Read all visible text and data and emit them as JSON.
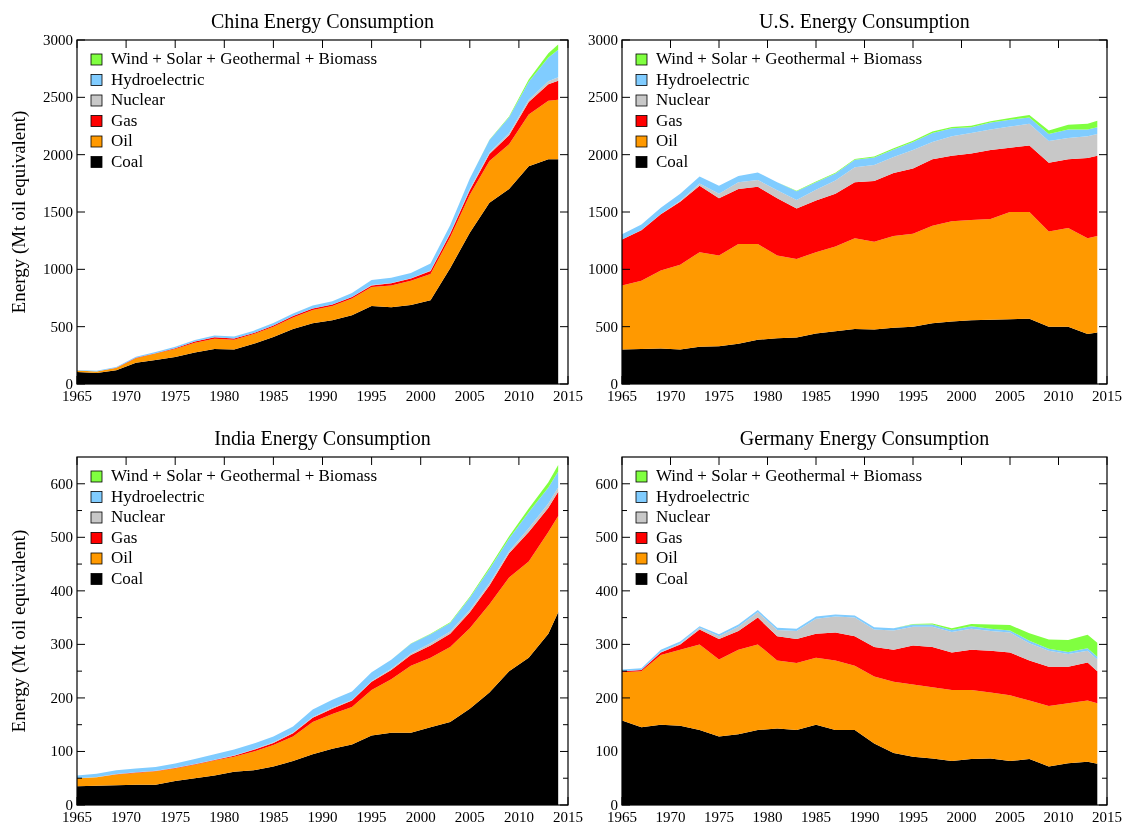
{
  "chart_data": [
    {
      "type": "area",
      "title": "China Energy Consumption",
      "ylabel": "Energy (Mt oil equivalent)",
      "stacked": true,
      "legend": "top left",
      "grid": false,
      "x": [
        1965,
        1967,
        1969,
        1971,
        1973,
        1975,
        1977,
        1979,
        1981,
        1983,
        1985,
        1987,
        1989,
        1991,
        1993,
        1995,
        1997,
        1999,
        2001,
        2003,
        2005,
        2007,
        2009,
        2011,
        2013,
        2014
      ],
      "xlim": [
        1965,
        2015
      ],
      "xticks": [
        1965,
        1970,
        1975,
        1980,
        1985,
        1990,
        1995,
        2000,
        2005,
        2010,
        2015
      ],
      "ylim": [
        0,
        3000
      ],
      "yticks": [
        0,
        500,
        1000,
        1500,
        2000,
        2500,
        3000
      ],
      "series": [
        {
          "name": "Coal",
          "color": "#000000",
          "values": [
            105,
            95,
            120,
            185,
            210,
            235,
            275,
            305,
            300,
            350,
            410,
            480,
            530,
            555,
            600,
            680,
            670,
            690,
            730,
            1010,
            1320,
            1580,
            1700,
            1900,
            1960,
            1960
          ]
        },
        {
          "name": "Oil",
          "color": "#ff9900",
          "values": [
            12,
            14,
            20,
            40,
            55,
            70,
            85,
            90,
            85,
            85,
            90,
            100,
            115,
            125,
            145,
            165,
            190,
            210,
            230,
            270,
            330,
            365,
            390,
            450,
            510,
            520
          ]
        },
        {
          "name": "Gas",
          "color": "#ff0000",
          "values": [
            1,
            1,
            2,
            3,
            4,
            7,
            10,
            12,
            11,
            10,
            11,
            12,
            13,
            13,
            14,
            15,
            18,
            20,
            25,
            30,
            40,
            60,
            80,
            110,
            145,
            165
          ]
        },
        {
          "name": "Nuclear",
          "color": "#c8c8c8",
          "values": [
            0,
            0,
            0,
            0,
            0,
            0,
            0,
            0,
            0,
            0,
            0,
            0,
            0,
            0,
            0,
            3,
            3,
            3,
            4,
            10,
            12,
            14,
            16,
            20,
            25,
            30
          ]
        },
        {
          "name": "Hydroelectric",
          "color": "#80ccff",
          "values": [
            5,
            5,
            7,
            9,
            10,
            12,
            13,
            15,
            18,
            20,
            21,
            22,
            27,
            28,
            34,
            43,
            45,
            46,
            62,
            64,
            90,
            110,
            140,
            155,
            208,
            240
          ]
        },
        {
          "name": "Wind + Solar + Geothermal + Biomass",
          "color": "#80ff40",
          "values": [
            0,
            0,
            0,
            0,
            0,
            0,
            0,
            0,
            0,
            0,
            0,
            0,
            0,
            0,
            0,
            0,
            0,
            0,
            0,
            0,
            1,
            2,
            6,
            20,
            36,
            45
          ]
        }
      ]
    },
    {
      "type": "area",
      "title": "U.S. Energy Consumption",
      "stacked": true,
      "legend": "top left",
      "grid": false,
      "x": [
        1965,
        1967,
        1969,
        1971,
        1973,
        1975,
        1977,
        1979,
        1981,
        1983,
        1985,
        1987,
        1989,
        1991,
        1993,
        1995,
        1997,
        1999,
        2001,
        2003,
        2005,
        2007,
        2009,
        2011,
        2013,
        2014
      ],
      "xlim": [
        1965,
        2015
      ],
      "xticks": [
        1965,
        1970,
        1975,
        1980,
        1985,
        1990,
        1995,
        2000,
        2005,
        2010,
        2015
      ],
      "ylim": [
        0,
        3000
      ],
      "yticks": [
        0,
        500,
        1000,
        1500,
        2000,
        2500,
        3000
      ],
      "series": [
        {
          "name": "Coal",
          "color": "#000000",
          "values": [
            300,
            305,
            310,
            300,
            325,
            330,
            350,
            385,
            400,
            405,
            440,
            460,
            480,
            475,
            490,
            500,
            530,
            545,
            555,
            560,
            565,
            570,
            500,
            500,
            435,
            450
          ]
        },
        {
          "name": "Oil",
          "color": "#ff9900",
          "values": [
            560,
            595,
            680,
            740,
            825,
            790,
            870,
            835,
            720,
            685,
            710,
            740,
            790,
            765,
            800,
            810,
            850,
            875,
            875,
            880,
            935,
            930,
            830,
            860,
            835,
            840
          ]
        },
        {
          "name": "Gas",
          "color": "#ff0000",
          "values": [
            400,
            440,
            490,
            550,
            580,
            500,
            480,
            500,
            500,
            440,
            450,
            460,
            490,
            530,
            550,
            570,
            580,
            570,
            580,
            600,
            560,
            580,
            600,
            600,
            700,
            700
          ]
        },
        {
          "name": "Nuclear",
          "color": "#c8c8c8",
          "values": [
            1,
            2,
            3,
            9,
            19,
            40,
            60,
            60,
            70,
            75,
            95,
            115,
            130,
            140,
            140,
            160,
            150,
            170,
            180,
            180,
            185,
            190,
            190,
            185,
            190,
            190
          ]
        },
        {
          "name": "Hydroelectric",
          "color": "#80ccff",
          "values": [
            45,
            50,
            55,
            60,
            60,
            70,
            55,
            65,
            70,
            75,
            65,
            60,
            65,
            65,
            65,
            70,
            80,
            70,
            50,
            60,
            60,
            55,
            60,
            75,
            60,
            60
          ]
        },
        {
          "name": "Wind + Solar + Geothermal + Biomass",
          "color": "#80ff40",
          "values": [
            0,
            0,
            0,
            0,
            0,
            0,
            0,
            0,
            0,
            5,
            6,
            8,
            8,
            10,
            10,
            12,
            12,
            12,
            12,
            12,
            15,
            20,
            30,
            40,
            50,
            55
          ]
        }
      ]
    },
    {
      "type": "area",
      "title": "India Energy Consumption",
      "ylabel": "Energy (Mt oil equivalent)",
      "stacked": true,
      "legend": "top left",
      "grid": false,
      "x": [
        1965,
        1967,
        1969,
        1971,
        1973,
        1975,
        1977,
        1979,
        1981,
        1983,
        1985,
        1987,
        1989,
        1991,
        1993,
        1995,
        1997,
        1999,
        2001,
        2003,
        2005,
        2007,
        2009,
        2011,
        2013,
        2014
      ],
      "xlim": [
        1965,
        2015
      ],
      "xticks": [
        1965,
        1970,
        1975,
        1980,
        1985,
        1990,
        1995,
        2000,
        2005,
        2010,
        2015
      ],
      "ylim": [
        0,
        650
      ],
      "yticks": [
        0,
        {
          "value": 50,
          "label": null
        },
        100,
        {
          "value": 150,
          "label": null
        },
        200,
        {
          "value": 250,
          "label": null
        },
        300,
        {
          "value": 350,
          "label": null
        },
        400,
        {
          "value": 450,
          "label": null
        },
        500,
        {
          "value": 550,
          "label": null
        },
        600
      ],
      "series": [
        {
          "name": "Coal",
          "color": "#000000",
          "values": [
            35,
            36,
            37,
            38,
            38,
            45,
            50,
            55,
            62,
            65,
            72,
            82,
            95,
            105,
            113,
            130,
            135,
            135,
            145,
            155,
            180,
            210,
            250,
            275,
            320,
            360
          ]
        },
        {
          "name": "Oil",
          "color": "#ff9900",
          "values": [
            15,
            16,
            20,
            22,
            25,
            23,
            25,
            28,
            28,
            35,
            40,
            46,
            60,
            65,
            70,
            85,
            100,
            125,
            130,
            140,
            150,
            165,
            175,
            180,
            190,
            180
          ]
        },
        {
          "name": "Gas",
          "color": "#ff0000",
          "values": [
            0,
            0,
            0.5,
            0.5,
            0.5,
            1,
            1,
            1,
            2,
            3,
            4,
            6,
            8,
            10,
            12,
            15,
            17,
            20,
            23,
            25,
            30,
            35,
            45,
            55,
            45,
            45
          ]
        },
        {
          "name": "Nuclear",
          "color": "#c8c8c8",
          "values": [
            0,
            0.3,
            0.5,
            0.5,
            0.5,
            0.6,
            0.7,
            0.7,
            0.7,
            0.8,
            1,
            1.5,
            1.2,
            1.5,
            1.2,
            1.8,
            2.5,
            3,
            4,
            4,
            4,
            4,
            4,
            7,
            8,
            8
          ]
        },
        {
          "name": "Hydroelectric",
          "color": "#80ccff",
          "values": [
            5,
            6,
            7,
            7,
            7,
            8,
            9,
            10,
            11,
            11,
            11,
            11,
            14,
            15,
            16,
            16,
            17,
            18,
            17,
            16,
            23,
            27,
            24,
            30,
            30,
            30
          ]
        },
        {
          "name": "Wind + Solar + Geothermal + Biomass",
          "color": "#80ff40",
          "values": [
            0,
            0,
            0,
            0,
            0,
            0,
            0,
            0,
            0,
            0,
            0,
            0,
            0,
            0,
            0,
            0,
            0,
            0.5,
            1,
            1.5,
            2,
            3,
            4,
            7,
            10,
            12
          ]
        }
      ]
    },
    {
      "type": "area",
      "title": "Germany Energy Consumption",
      "stacked": true,
      "legend": "top left",
      "grid": false,
      "x": [
        1965,
        1967,
        1969,
        1971,
        1973,
        1975,
        1977,
        1979,
        1981,
        1983,
        1985,
        1987,
        1989,
        1991,
        1993,
        1995,
        1997,
        1999,
        2001,
        2003,
        2005,
        2007,
        2009,
        2011,
        2013,
        2014
      ],
      "xlim": [
        1965,
        2015
      ],
      "xticks": [
        1965,
        1970,
        1975,
        1980,
        1985,
        1990,
        1995,
        2000,
        2005,
        2010,
        2015
      ],
      "ylim": [
        0,
        650
      ],
      "yticks": [
        0,
        {
          "value": 50,
          "label": null
        },
        100,
        {
          "value": 150,
          "label": null
        },
        200,
        {
          "value": 250,
          "label": null
        },
        300,
        {
          "value": 350,
          "label": null
        },
        400,
        {
          "value": 450,
          "label": null
        },
        500,
        {
          "value": 550,
          "label": null
        },
        600
      ],
      "series": [
        {
          "name": "Coal",
          "color": "#000000",
          "values": [
            158,
            145,
            150,
            148,
            140,
            128,
            132,
            140,
            143,
            140,
            150,
            140,
            140,
            115,
            97,
            90,
            87,
            82,
            86,
            87,
            82,
            86,
            72,
            78,
            81,
            77
          ]
        },
        {
          "name": "Oil",
          "color": "#ff9900",
          "values": [
            90,
            105,
            130,
            142,
            160,
            144,
            158,
            160,
            127,
            125,
            125,
            130,
            120,
            125,
            133,
            135,
            133,
            133,
            129,
            123,
            123,
            109,
            113,
            112,
            114,
            113
          ]
        },
        {
          "name": "Gas",
          "color": "#ff0000",
          "values": [
            2,
            2,
            5,
            10,
            28,
            38,
            35,
            50,
            45,
            45,
            45,
            52,
            55,
            55,
            60,
            73,
            75,
            70,
            75,
            78,
            80,
            75,
            73,
            68,
            71,
            60
          ]
        },
        {
          "name": "Nuclear",
          "color": "#c8c8c8",
          "values": [
            0,
            0.3,
            1,
            1.5,
            3,
            5,
            8,
            10,
            12,
            15,
            28,
            30,
            35,
            33,
            36,
            35,
            38,
            38,
            39,
            37,
            37,
            32,
            30,
            24,
            22,
            22
          ]
        },
        {
          "name": "Hydroelectric",
          "color": "#80ccff",
          "values": [
            3,
            3,
            4,
            4,
            3,
            4,
            4,
            4,
            4,
            4,
            4,
            4,
            4,
            4,
            4,
            4,
            4,
            4,
            5,
            4,
            4,
            5,
            4,
            4,
            5,
            5
          ]
        },
        {
          "name": "Wind + Solar + Geothermal + Biomass",
          "color": "#80ff40",
          "values": [
            0,
            0,
            0,
            0,
            0,
            0,
            0,
            0,
            0,
            0,
            0,
            0,
            0,
            0,
            0,
            1,
            2,
            3,
            4,
            8,
            10,
            14,
            17,
            22,
            25,
            26
          ]
        }
      ]
    }
  ]
}
